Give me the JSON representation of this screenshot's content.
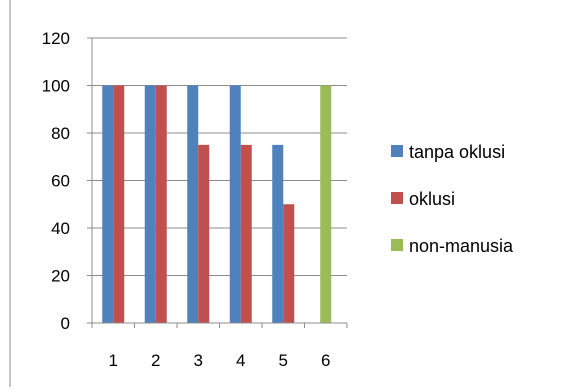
{
  "chart_data": {
    "type": "bar",
    "title": "",
    "xlabel": "",
    "ylabel": "",
    "categories": [
      "1",
      "2",
      "3",
      "4",
      "5",
      "6"
    ],
    "ylim": [
      0,
      120
    ],
    "yticks": [
      "0",
      "20",
      "40",
      "60",
      "80",
      "100",
      "120"
    ],
    "grid": true,
    "legend_position": "right",
    "series": [
      {
        "name": "tanpa oklusi",
        "color": "#4f81bd",
        "values": [
          100,
          100,
          100,
          100,
          75,
          0
        ]
      },
      {
        "name": "oklusi",
        "color": "#c0504d",
        "values": [
          100,
          100,
          75,
          75,
          50,
          0
        ]
      },
      {
        "name": "non-manusia",
        "color": "#9bbb59",
        "values": [
          0,
          0,
          0,
          0,
          0,
          100
        ]
      }
    ]
  }
}
